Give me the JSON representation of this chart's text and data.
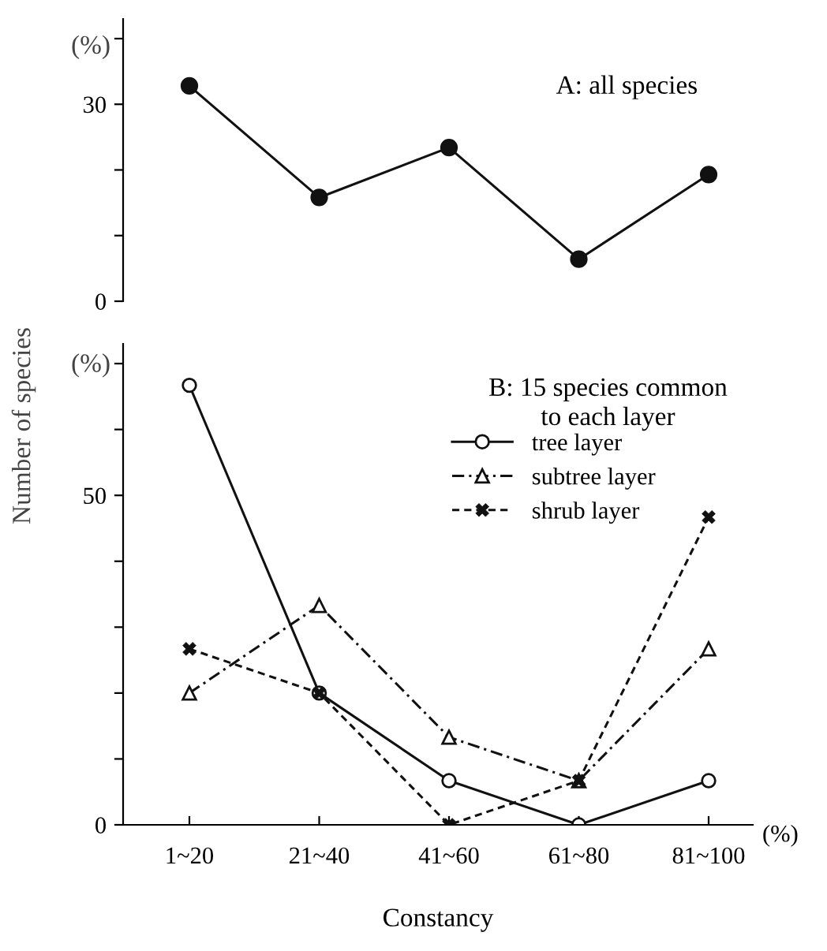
{
  "chart_data": [
    {
      "type": "line",
      "title": "A: all species",
      "categories": [
        null,
        null,
        null,
        null,
        null
      ],
      "tick_labels": "y",
      "marker": "circle",
      "line_style": "solid",
      "grid": false,
      "legend": false,
      "series": [
        {
          "color": "#111111",
          "values": [
            32.8,
            15.8,
            23.4,
            6.4,
            19.3
          ]
        }
      ],
      "ylim": [
        0,
        43
      ],
      "yticks": [
        0,
        {
          "value": 10,
          "label": null
        },
        {
          "value": 20,
          "label": null
        },
        30,
        {
          "value": 40,
          "label": null
        }
      ],
      "annotations": [
        "(%)"
      ]
    },
    {
      "type": "line",
      "title": "B: 15 species common\nto each layer",
      "ylabel": "Number of species",
      "xlabel": "Constancy",
      "categories": [
        "1~20",
        "21~40",
        "41~60",
        "61~80",
        "81~100"
      ],
      "grid": false,
      "legend": "right",
      "series": [
        {
          "name": "tree layer",
          "color": "#111111",
          "marker": "circle",
          "line_style": "solid",
          "values": [
            66.7,
            20,
            6.7,
            0,
            6.7
          ]
        },
        {
          "name": "subtree layer",
          "color": "#111111",
          "marker": "triangle",
          "line_style": "dashdot",
          "values": [
            20,
            33.3,
            13.3,
            6.7,
            26.7
          ]
        },
        {
          "name": "shrub layer",
          "color": "#111111",
          "marker": "cross",
          "line_style": "dashed",
          "values": [
            26.7,
            20,
            0,
            6.7,
            46.7
          ]
        }
      ],
      "ylim": [
        0,
        73
      ],
      "yticks": [
        0,
        {
          "value": 10,
          "label": null
        },
        {
          "value": 20,
          "label": null
        },
        {
          "value": 30,
          "label": null
        },
        {
          "value": 40,
          "label": null
        },
        50,
        {
          "value": 60,
          "label": null
        },
        {
          "value": 70,
          "label": null
        }
      ],
      "annotations": [
        "(%)",
        "(%)"
      ]
    }
  ]
}
